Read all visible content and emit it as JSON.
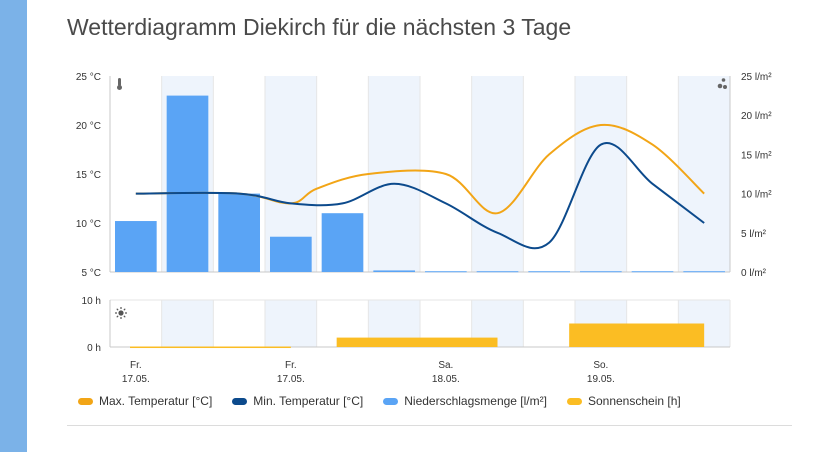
{
  "title": "Wetterdiagramm Diekirch für die nächsten 3 Tage",
  "chart_data": {
    "type": "line",
    "x_labels": [
      {
        "day": "Fr.",
        "date": "17.05."
      },
      {
        "day": "Fr.",
        "date": "17.05."
      },
      {
        "day": "Sa.",
        "date": "18.05."
      },
      {
        "day": "So.",
        "date": "19.05."
      }
    ],
    "temperature_axis": {
      "ticks": [
        "25 °C",
        "20 °C",
        "15 °C",
        "10 °C",
        "5 °C"
      ],
      "ylim": [
        5,
        25
      ]
    },
    "precip_axis": {
      "ticks": [
        "25 l/m²",
        "20 l/m²",
        "15 l/m²",
        "10 l/m²",
        "5 l/m²",
        "0 l/m²"
      ],
      "ylim": [
        0,
        25
      ]
    },
    "sun_axis": {
      "ticks": [
        "10 h",
        "0 h"
      ],
      "ylim": [
        0,
        10
      ]
    },
    "max_temperature": {
      "name": "Max. Temperatur [°C]",
      "color": "#f2a516",
      "points": [
        [
          0.5,
          13
        ],
        [
          2.5,
          13
        ],
        [
          3.5,
          12
        ],
        [
          4,
          13.5
        ],
        [
          5,
          15
        ],
        [
          6.5,
          15
        ],
        [
          7.5,
          11
        ],
        [
          8.5,
          17
        ],
        [
          9.5,
          20
        ],
        [
          10.5,
          18
        ],
        [
          11.5,
          13
        ]
      ]
    },
    "min_temperature": {
      "name": "Min. Temperatur [°C]",
      "color": "#0c4a8c",
      "points": [
        [
          0.5,
          13
        ],
        [
          2.5,
          13
        ],
        [
          3.5,
          12
        ],
        [
          4.5,
          12
        ],
        [
          5.5,
          14
        ],
        [
          6.5,
          12
        ],
        [
          7.5,
          9
        ],
        [
          8.5,
          8
        ],
        [
          9.5,
          18
        ],
        [
          10.5,
          14
        ],
        [
          11.5,
          10
        ]
      ]
    },
    "precipitation": {
      "name": "Niederschlagsmenge [l/m²]",
      "color": "#5aa4f5",
      "values": [
        6.5,
        22.5,
        10,
        4.5,
        7.5,
        0.2,
        0.1,
        0.1,
        0.1,
        0.1,
        0.1,
        0.1
      ]
    },
    "sunshine": {
      "name": "Sonnenschein [h]",
      "color": "#fbbd23",
      "segments": [
        [
          0,
          3.5,
          0.1
        ],
        [
          4,
          7.5,
          2
        ],
        [
          8.5,
          11.5,
          5
        ]
      ]
    },
    "legend": [
      {
        "label": "Max.  Temperatur [°C]",
        "color": "#f2a516"
      },
      {
        "label": "Min.  Temperatur [°C]",
        "color": "#0c4a8c"
      },
      {
        "label": "Niederschlagsmenge [l/m²]",
        "color": "#5aa4f5"
      },
      {
        "label": "Sonnenschein [h]",
        "color": "#fbbd23"
      }
    ],
    "icons": {
      "temperature": "thermometer-icon",
      "precip": "raindrops-icon",
      "sun": "sun-icon"
    }
  }
}
